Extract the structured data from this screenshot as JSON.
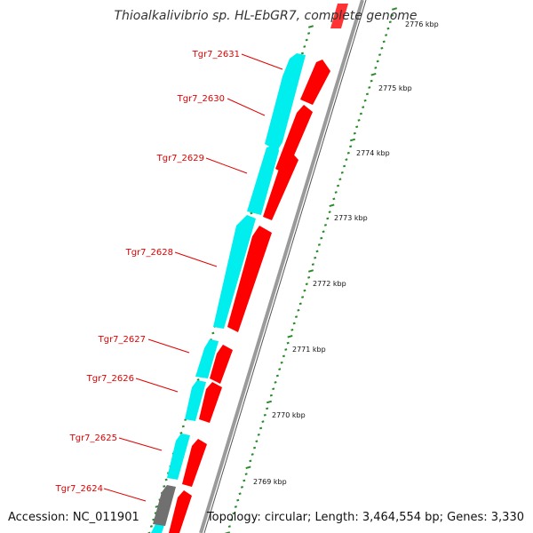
{
  "title": "Thioalkalivibrio sp. HL-EbGR7, complete genome",
  "footer": {
    "accession": "Accession: NC_011901",
    "summary": "Topology: circular; Length: 3,464,554 bp; Genes: 3,330"
  },
  "colors": {
    "forward_gene": "#ff0000",
    "reverse_gene": "#00eeee",
    "other_gene": "#707070",
    "backbone": "#888888",
    "ticks": "#2a8a2a",
    "label": "#e00000"
  },
  "scale_labels": [
    "2776 kbp",
    "2775 kbp",
    "2774 kbp",
    "2773 kbp",
    "2772 kbp",
    "2771 kbp",
    "2770 kbp",
    "2769 kbp"
  ],
  "gene_labels": [
    "Tgr7_2631",
    "Tgr7_2630",
    "Tgr7_2629",
    "Tgr7_2628",
    "Tgr7_2627",
    "Tgr7_2626",
    "Tgr7_2625",
    "Tgr7_2624"
  ]
}
